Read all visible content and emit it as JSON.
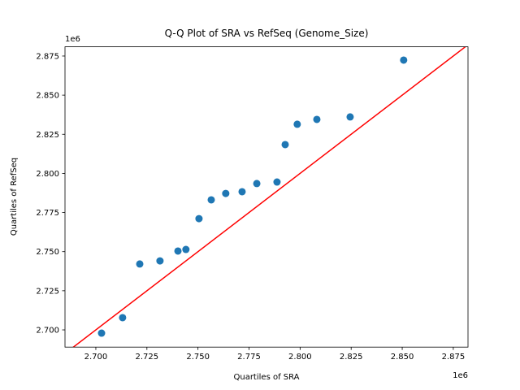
{
  "chart_data": {
    "type": "scatter",
    "title": "Q-Q Plot of SRA vs RefSeq (Genome_Size)",
    "x_label": "Quartiles of SRA",
    "y_label": "Quartiles of RefSeq",
    "x_offset_label": "1e6",
    "y_offset_label": "1e6",
    "grid": false,
    "reference_line": {
      "kind": "y=x",
      "color": "#ff0000"
    },
    "xlim": [
      2.6849,
      2.8822
    ],
    "ylim": [
      2.689,
      2.8809
    ],
    "xticks": [
      {
        "value": 2.7,
        "label": "2.700"
      },
      2.725,
      {
        "value": 2.75,
        "label": "2.750"
      },
      2.775,
      {
        "value": 2.8,
        "label": "2.800"
      },
      2.825,
      {
        "value": 2.85,
        "label": "2.850"
      },
      2.875
    ],
    "yticks": [
      {
        "value": 2.7,
        "label": "2.700"
      },
      2.725,
      {
        "value": 2.75,
        "label": "2.750"
      },
      2.775,
      {
        "value": 2.8,
        "label": "2.800"
      },
      2.825,
      {
        "value": 2.85,
        "label": "2.850"
      },
      2.875
    ],
    "series": [
      {
        "color": "#1f77b4",
        "x": [
          2.7028,
          2.7131,
          2.7215,
          2.7314,
          2.7402,
          2.7441,
          2.7505,
          2.7565,
          2.7636,
          2.7716,
          2.7788,
          2.7887,
          2.7927,
          2.7986,
          2.8082,
          2.8245,
          2.8507
        ],
        "values": [
          2.6979,
          2.7078,
          2.7421,
          2.7441,
          2.7504,
          2.7514,
          2.7711,
          2.7831,
          2.7872,
          2.7883,
          2.7935,
          2.7945,
          2.8184,
          2.8314,
          2.8345,
          2.8361,
          2.8724
        ]
      }
    ]
  }
}
